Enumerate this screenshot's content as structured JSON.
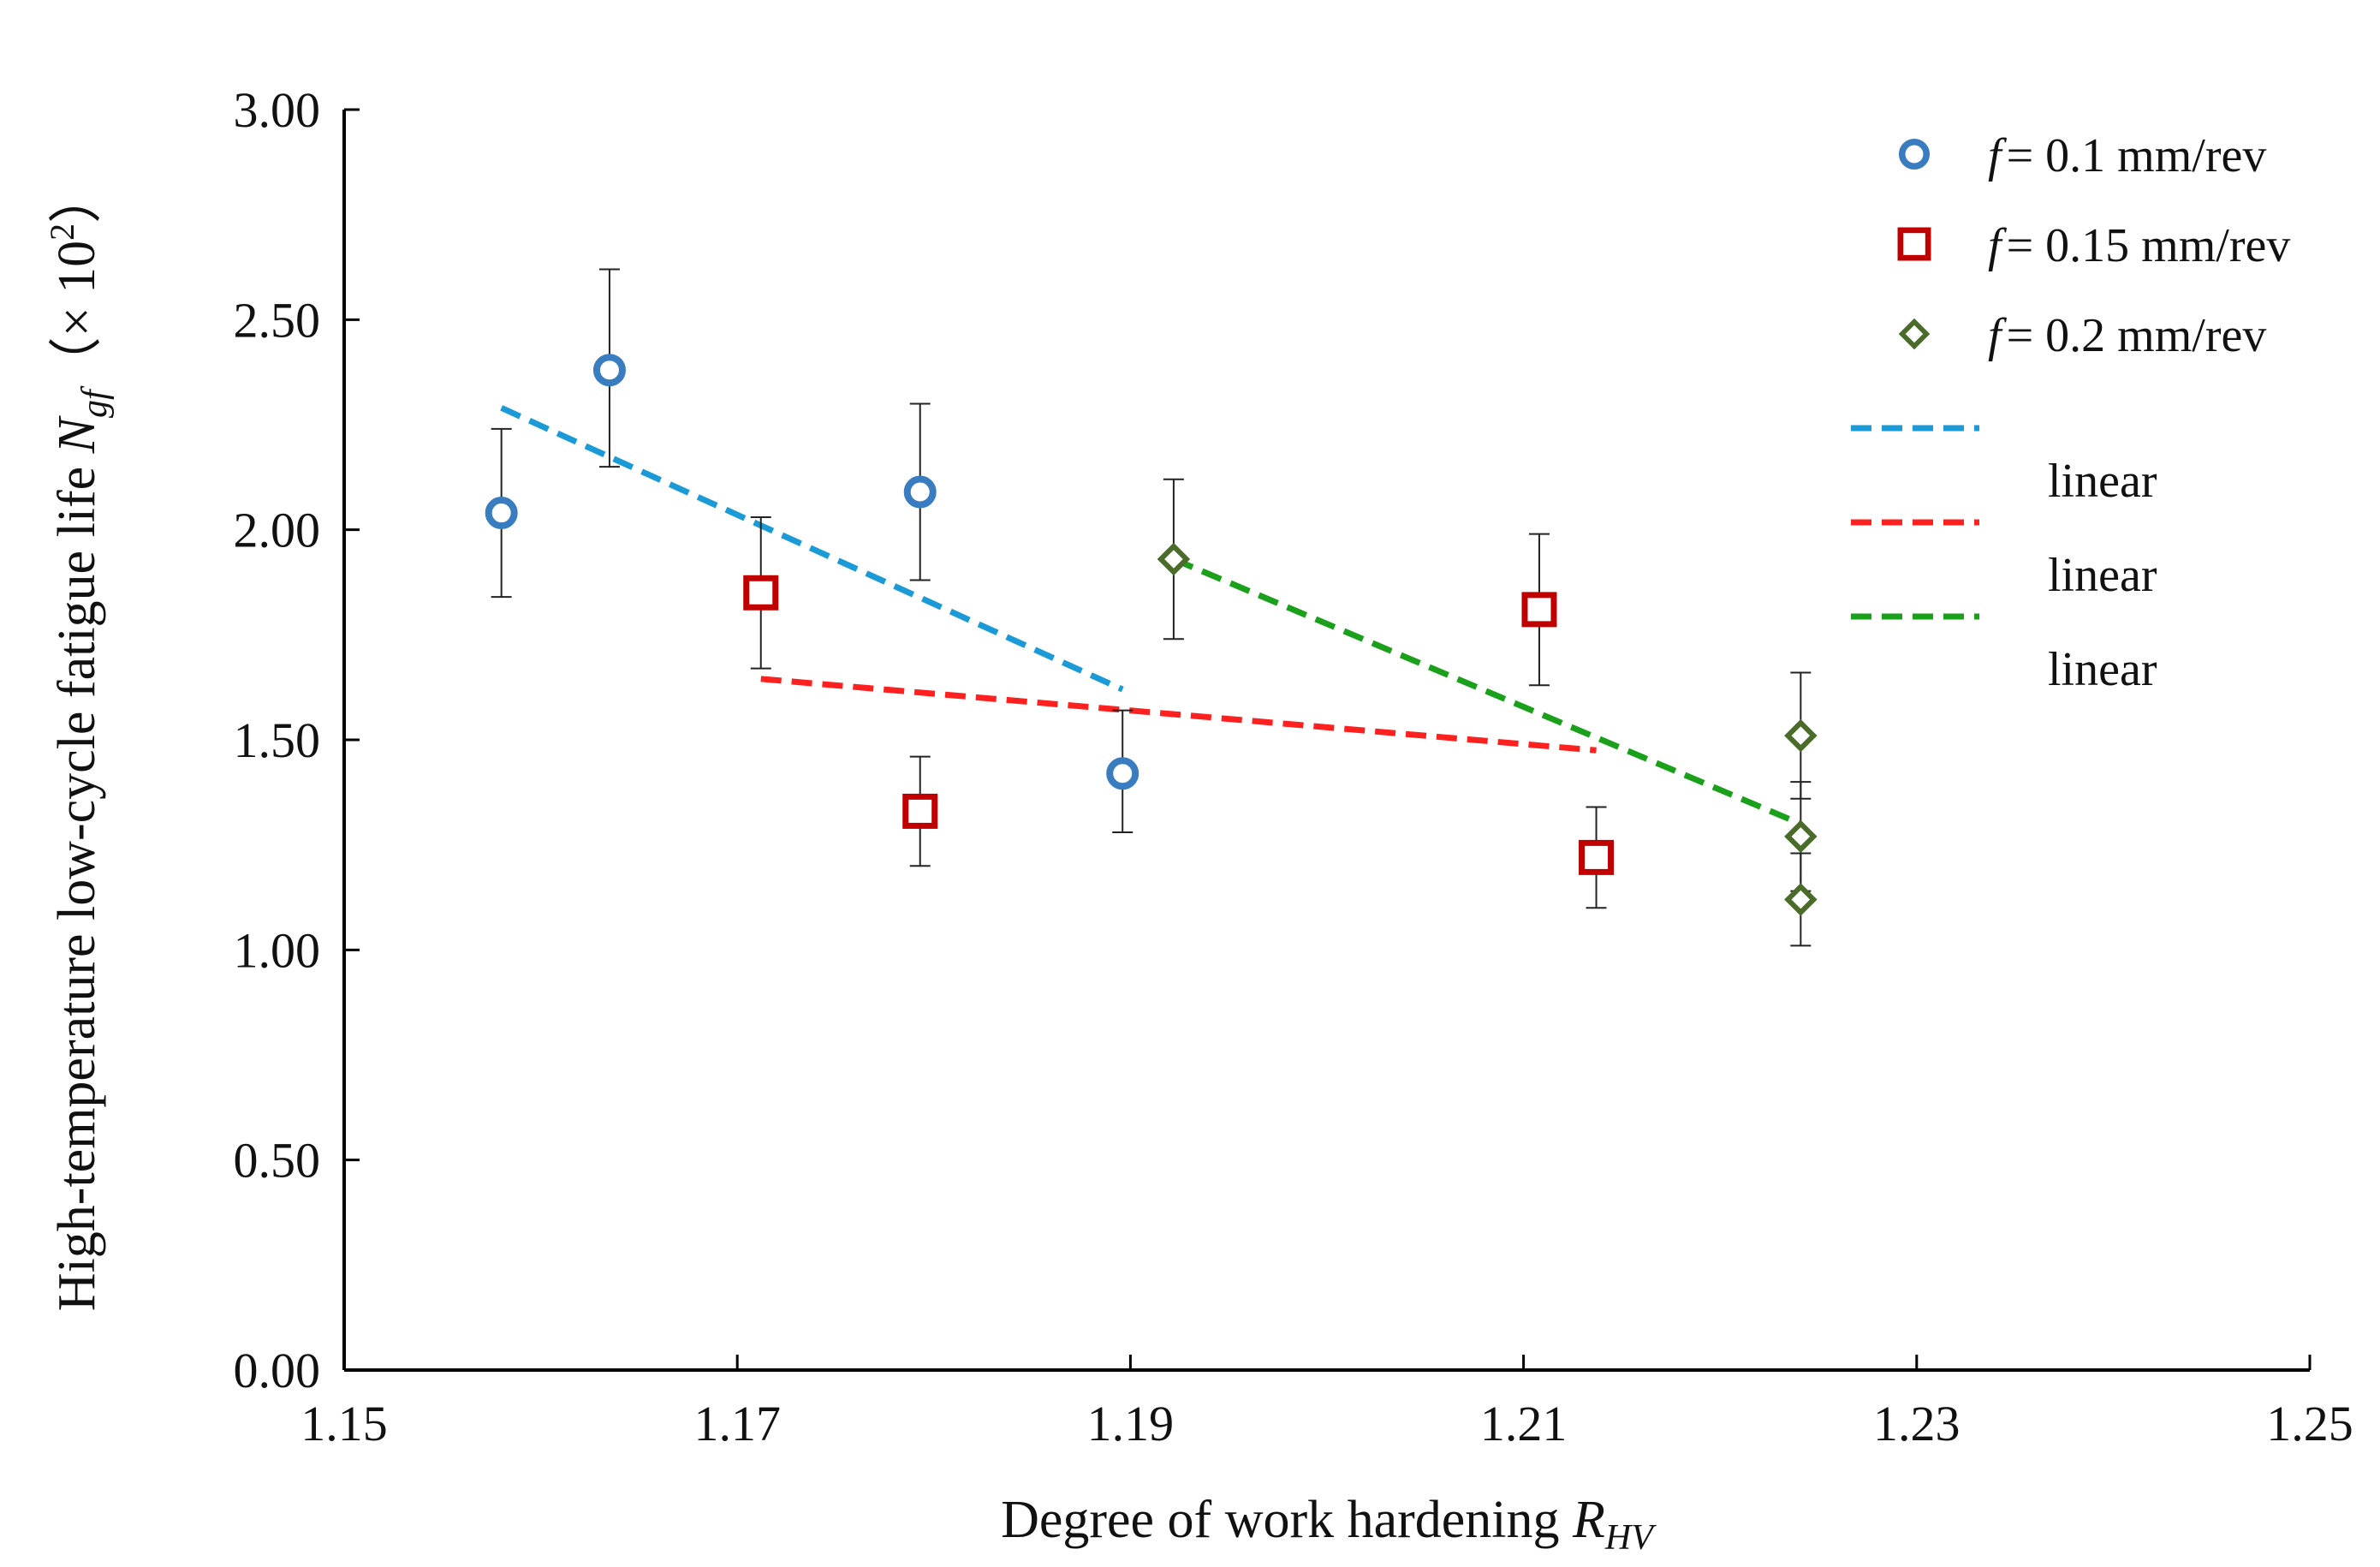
{
  "chart_data": {
    "type": "scatter",
    "xlabel": "Degree of work hardening",
    "xlabel_symbol": "R",
    "xlabel_subscript": "HV",
    "ylabel": "High-temperature low-cycle fatigue life",
    "ylabel_symbol": "N",
    "ylabel_subscript": "gf",
    "ylabel_unit_open": "（× 10",
    "ylabel_unit_exp": "2",
    "ylabel_unit_close": "）",
    "xlim": [
      1.15,
      1.25
    ],
    "ylim": [
      0.0,
      3.0
    ],
    "x_ticks": [
      1.15,
      1.17,
      1.19,
      1.21,
      1.23,
      1.25
    ],
    "x_tick_labels": [
      "1.15",
      "1.17",
      "1.19",
      "1.21",
      "1.23",
      "1.25"
    ],
    "y_ticks": [
      0.0,
      0.5,
      1.0,
      1.5,
      2.0,
      2.5,
      3.0
    ],
    "y_tick_labels": [
      "0.00",
      "0.50",
      "1.00",
      "1.50",
      "2.00",
      "2.50",
      "3.00"
    ],
    "grid": false,
    "legend_position": "top-right",
    "series": [
      {
        "name": "f = 0.1 mm/rev",
        "legend_symbol": "f",
        "legend_text": "= 0.1 mm/rev",
        "marker": "circle",
        "color": "#3a7cc0",
        "points": [
          {
            "x": 1.158,
            "y": 2.04,
            "err_low": 1.84,
            "err_high": 2.24
          },
          {
            "x": 1.1635,
            "y": 2.38,
            "err_low": 2.15,
            "err_high": 2.62
          },
          {
            "x": 1.1793,
            "y": 2.09,
            "err_low": 1.88,
            "err_high": 2.3
          },
          {
            "x": 1.1896,
            "y": 1.42,
            "err_low": 1.28,
            "err_high": 1.57
          }
        ]
      },
      {
        "name": "f = 0.15 mm/rev",
        "legend_symbol": "f",
        "legend_text": "= 0.15 mm/rev",
        "marker": "square",
        "color": "#c00000",
        "points": [
          {
            "x": 1.1712,
            "y": 1.85,
            "err_low": 1.67,
            "err_high": 2.03
          },
          {
            "x": 1.1793,
            "y": 1.33,
            "err_low": 1.2,
            "err_high": 1.46
          },
          {
            "x": 1.2108,
            "y": 1.81,
            "err_low": 1.63,
            "err_high": 1.99
          },
          {
            "x": 1.2137,
            "y": 1.22,
            "err_low": 1.1,
            "err_high": 1.34
          }
        ]
      },
      {
        "name": "f = 0.2 mm/rev",
        "legend_symbol": "f",
        "legend_text": "= 0.2 mm/rev",
        "marker": "diamond",
        "color": "#4a6b2a",
        "points": [
          {
            "x": 1.1922,
            "y": 1.93,
            "err_low": 1.74,
            "err_high": 2.12
          },
          {
            "x": 1.2241,
            "y": 1.51,
            "err_low": 1.36,
            "err_high": 1.66
          },
          {
            "x": 1.2241,
            "y": 1.27,
            "err_low": 1.14,
            "err_high": 1.4
          },
          {
            "x": 1.2241,
            "y": 1.12,
            "err_low": 1.01,
            "err_high": 1.23
          }
        ]
      }
    ],
    "trendlines": [
      {
        "name": "linear",
        "color": "#1a9ad6",
        "x": [
          1.158,
          1.1896
        ],
        "y": [
          2.29,
          1.62
        ]
      },
      {
        "name": "linear",
        "color": "#ff2020",
        "x": [
          1.1712,
          1.2137
        ],
        "y": [
          1.645,
          1.475
        ]
      },
      {
        "name": "linear",
        "color": "#1aa01a",
        "x": [
          1.1922,
          1.2241
        ],
        "y": [
          1.93,
          1.3
        ]
      }
    ]
  }
}
